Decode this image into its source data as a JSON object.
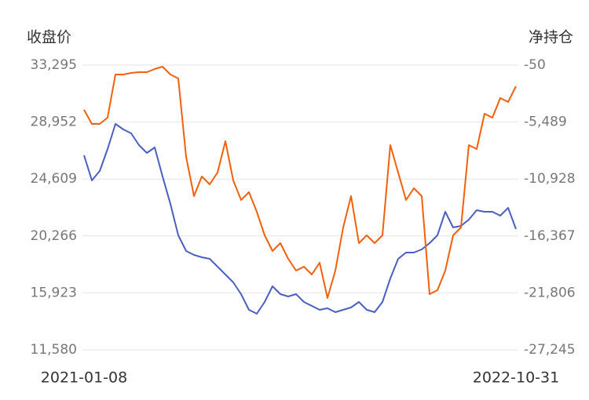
{
  "chart_data": {
    "type": "line",
    "y_label": "收盘价",
    "y2_label": "净持仓",
    "categories": [
      "2021-01-08",
      null,
      null,
      null,
      null,
      null,
      null,
      null,
      null,
      null,
      null,
      null,
      null,
      null,
      null,
      null,
      null,
      null,
      null,
      null,
      null,
      null,
      null,
      null,
      null,
      null,
      null,
      null,
      null,
      null,
      null,
      null,
      null,
      null,
      null,
      null,
      null,
      null,
      null,
      null,
      null,
      null,
      null,
      null,
      null,
      null,
      null,
      null,
      null,
      null,
      null,
      null,
      null,
      null,
      null,
      "2022-10-31"
    ],
    "series": [
      {
        "name": "收盘价",
        "color": "#4a5fc1",
        "values": [
          26416,
          24501,
          25219,
          26894,
          28808,
          28390,
          28091,
          27193,
          26595,
          27014,
          24801,
          22707,
          20314,
          19118,
          18819,
          18639,
          18519,
          17921,
          17323,
          16725,
          15828,
          14631,
          14332,
          15229,
          16426,
          15828,
          15648,
          15828,
          15229,
          14930,
          14631,
          14751,
          14452,
          14631,
          14811,
          15229,
          14631,
          14452,
          15229,
          17024,
          18519,
          18998,
          18998,
          19237,
          19716,
          20314,
          22109,
          20912,
          21032,
          21510,
          22228,
          22109,
          22109,
          21810,
          22408,
          20793
        ]
      },
      {
        "name": "净持仓",
        "color": "#f2600c",
        "axis": "y2",
        "values": [
          -4320,
          -5669,
          -5669,
          -5070,
          -949,
          -949,
          -799,
          -724,
          -724,
          -425,
          -200,
          -949,
          -1324,
          -8816,
          -12562,
          -10689,
          -11438,
          -10314,
          -7317,
          -11063,
          -12936,
          -12187,
          -14060,
          -16308,
          -17806,
          -17057,
          -18555,
          -19679,
          -19304,
          -20054,
          -18930,
          -22301,
          -19679,
          -15558,
          -12562,
          -17057,
          -16308,
          -17057,
          -16308,
          -7692,
          -10314,
          -12936,
          -11812,
          -12562,
          -21927,
          -21552,
          -19679,
          -16308,
          -15558,
          -7692,
          -8066,
          -4695,
          -5070,
          -3197,
          -3571,
          -2073
        ]
      }
    ],
    "ylim": [
      11580,
      33295
    ],
    "yticks": [
      {
        "value": 11580,
        "label": "11,580"
      },
      {
        "value": 15923,
        "label": "15,923"
      },
      {
        "value": 20266,
        "label": "20,266"
      },
      {
        "value": 24609,
        "label": "24,609"
      },
      {
        "value": 28952,
        "label": "28,952"
      },
      {
        "value": 33295,
        "label": "33,295"
      }
    ],
    "y2lim": [
      -27245,
      -50
    ],
    "y2ticks": [
      {
        "value": -27245,
        "label": "-27,245"
      },
      {
        "value": -21806,
        "label": "-21,806"
      },
      {
        "value": -16367,
        "label": "-16,367"
      },
      {
        "value": -10928,
        "label": "-10,928"
      },
      {
        "value": -5489,
        "label": "-5,489"
      },
      -50
    ],
    "grid": true
  }
}
